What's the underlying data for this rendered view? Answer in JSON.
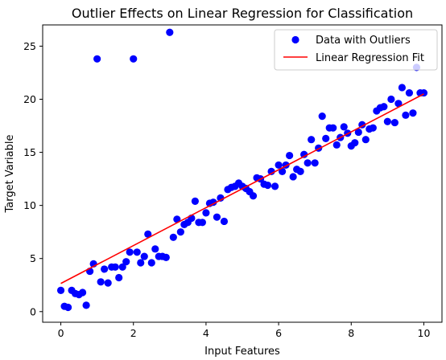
{
  "chart_data": {
    "type": "scatter",
    "title": "Outlier Effects on Linear Regression for Classification",
    "xlabel": "Input Features",
    "ylabel": "Target Variable",
    "xlim": [
      -0.5,
      10.5
    ],
    "ylim": [
      -1,
      27
    ],
    "xticks": [
      0,
      2,
      4,
      6,
      8,
      10
    ],
    "yticks": [
      0,
      5,
      10,
      15,
      20,
      25
    ],
    "grid": false,
    "legend_position": "top-right",
    "colors": {
      "scatter": "#0000ff",
      "fit": "#ff0000"
    },
    "series": [
      {
        "name": "Data with Outliers",
        "kind": "scatter",
        "x": [
          0.0,
          0.1,
          0.2,
          0.3,
          0.4,
          0.5,
          0.6,
          0.7,
          0.8,
          0.9,
          1.0,
          1.1,
          1.2,
          1.3,
          1.4,
          1.5,
          1.6,
          1.7,
          1.8,
          1.9,
          2.0,
          2.1,
          2.2,
          2.3,
          2.4,
          2.5,
          2.6,
          2.7,
          2.8,
          2.9,
          3.0,
          3.1,
          3.2,
          3.3,
          3.4,
          3.5,
          3.6,
          3.7,
          3.8,
          3.9,
          4.0,
          4.1,
          4.2,
          4.3,
          4.4,
          4.5,
          4.6,
          4.7,
          4.8,
          4.9,
          5.0,
          5.1,
          5.2,
          5.3,
          5.4,
          5.5,
          5.6,
          5.7,
          5.8,
          5.9,
          6.0,
          6.1,
          6.2,
          6.3,
          6.4,
          6.5,
          6.6,
          6.7,
          6.8,
          6.9,
          7.0,
          7.1,
          7.2,
          7.3,
          7.4,
          7.5,
          7.6,
          7.7,
          7.8,
          7.9,
          8.0,
          8.1,
          8.2,
          8.3,
          8.4,
          8.5,
          8.6,
          8.7,
          8.8,
          8.9,
          9.0,
          9.1,
          9.2,
          9.3,
          9.4,
          9.5,
          9.6,
          9.7,
          9.8,
          9.9,
          10.0
        ],
        "y": [
          2.0,
          0.5,
          0.4,
          2.0,
          1.7,
          1.6,
          1.8,
          0.6,
          3.8,
          4.5,
          23.8,
          2.8,
          4.0,
          2.7,
          4.2,
          4.2,
          3.2,
          4.2,
          4.7,
          5.6,
          23.8,
          5.6,
          4.6,
          5.2,
          7.3,
          4.6,
          5.9,
          5.2,
          5.2,
          5.1,
          26.3,
          7.0,
          8.7,
          7.5,
          8.2,
          8.4,
          8.8,
          10.4,
          8.4,
          8.4,
          9.3,
          10.2,
          10.3,
          8.9,
          10.7,
          8.5,
          11.5,
          11.7,
          11.8,
          12.1,
          11.8,
          11.6,
          11.3,
          10.9,
          12.6,
          12.5,
          12.0,
          11.9,
          13.2,
          11.8,
          13.8,
          13.2,
          13.8,
          14.7,
          12.7,
          13.4,
          13.2,
          14.8,
          14.0,
          16.2,
          14.0,
          15.4,
          18.4,
          16.3,
          17.3,
          17.3,
          15.7,
          16.4,
          17.4,
          16.8,
          15.6,
          15.9,
          16.9,
          17.6,
          16.2,
          17.2,
          17.3,
          18.9,
          19.2,
          19.3,
          17.9,
          20.0,
          17.8,
          19.6,
          21.1,
          18.5,
          20.6,
          18.7,
          23.0,
          20.6,
          20.6
        ]
      },
      {
        "name": "Linear Regression Fit",
        "kind": "line",
        "x": [
          0,
          10
        ],
        "y": [
          2.65,
          20.5
        ]
      }
    ]
  }
}
